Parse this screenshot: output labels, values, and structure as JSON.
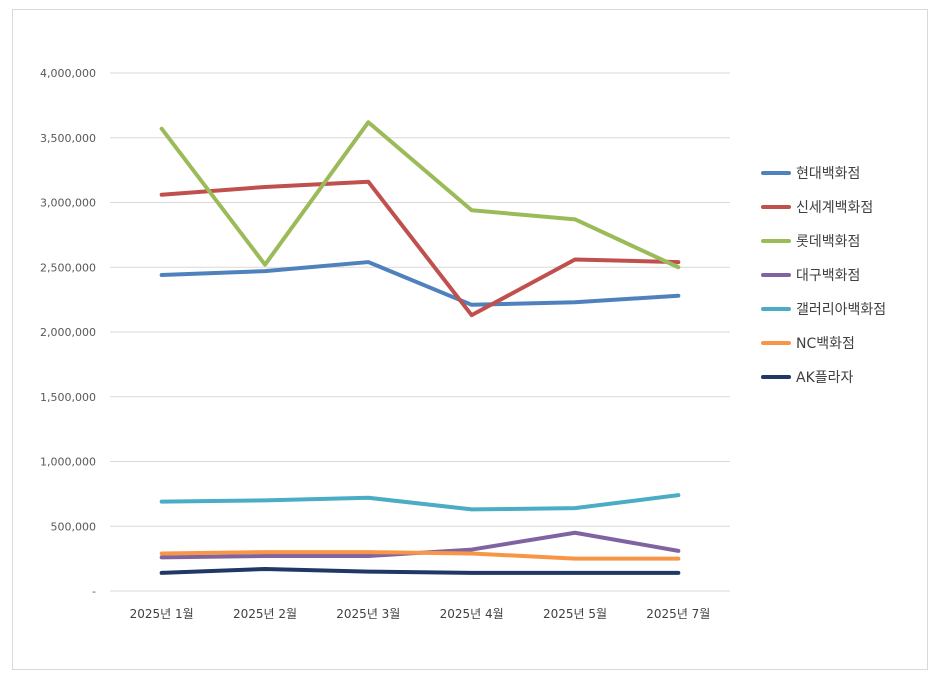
{
  "chart_data": {
    "type": "line",
    "title": "",
    "xlabel": "",
    "ylabel": "",
    "categories": [
      "2025년 1월",
      "2025년 2월",
      "2025년 3월",
      "2025년 4월",
      "2025년 5월",
      "2025년 7월"
    ],
    "ylim": [
      0,
      4000000
    ],
    "yticks": [
      0,
      500000,
      1000000,
      1500000,
      2000000,
      2500000,
      3000000,
      3500000,
      4000000
    ],
    "ytick_labels": [
      "-",
      "500,000",
      "1,000,000",
      "1,500,000",
      "2,000,000",
      "2,500,000",
      "3,000,000",
      "3,500,000",
      "4,000,000"
    ],
    "grid": true,
    "legend_position": "right",
    "series": [
      {
        "name": "현대백화점",
        "color": "#4f81bd",
        "values": [
          2440000,
          2470000,
          2540000,
          2210000,
          2230000,
          2280000
        ]
      },
      {
        "name": "신세계백화점",
        "color": "#c0504d",
        "values": [
          3060000,
          3120000,
          3160000,
          2130000,
          2560000,
          2540000
        ]
      },
      {
        "name": "롯데백화점",
        "color": "#9bbb59",
        "values": [
          3570000,
          2520000,
          3620000,
          2940000,
          2870000,
          2500000
        ]
      },
      {
        "name": "대구백화점",
        "color": "#8064a2",
        "values": [
          260000,
          270000,
          270000,
          320000,
          450000,
          310000
        ]
      },
      {
        "name": "갤러리아백화점",
        "color": "#4bacc6",
        "values": [
          690000,
          700000,
          720000,
          630000,
          640000,
          740000
        ]
      },
      {
        "name": "NC백화점",
        "color": "#f79646",
        "values": [
          290000,
          300000,
          300000,
          290000,
          250000,
          250000
        ]
      },
      {
        "name": "AK플라자",
        "color": "#1f3864",
        "values": [
          140000,
          170000,
          150000,
          140000,
          140000,
          140000
        ]
      }
    ]
  }
}
